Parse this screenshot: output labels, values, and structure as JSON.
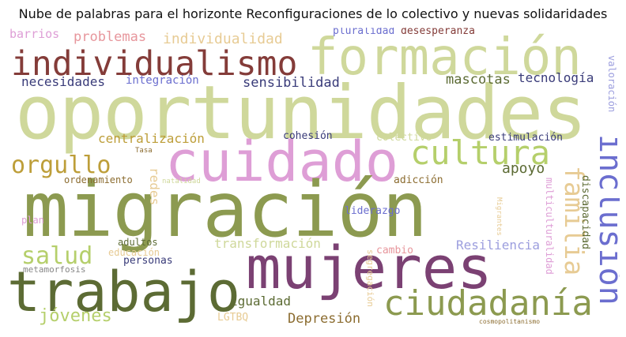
{
  "title": "Nube de palabras para el horizonte Reconfiguraciones de lo colectivo y nuevas solidaridades",
  "words": {
    "oportunidades": "oportunidades",
    "migracion": "migración",
    "formacion": "formación",
    "cuidado": "cuidado",
    "mujeres": "mujeres",
    "trabajo": "trabajo",
    "individualismo": "individualismo",
    "ciudadania": "ciudadanía",
    "cultura": "cultura",
    "inclusion": "inclusión",
    "familia": "familia",
    "orgullo": "orgullo",
    "salud": "salud",
    "jovenes": "jóvenes",
    "problemas": "problemas",
    "individualidad": "individualidad",
    "barrios": "barrios",
    "pluralidad": "pluralidad",
    "desesperanza": "desesperanza",
    "necesidades": "necesidades",
    "integracion": "integración",
    "sensibilidad": "sensibilidad",
    "mascotas": "mascotas",
    "tecnologia": "tecnología",
    "valoracion": "valoración",
    "centralizacion": "centralización",
    "cohesion": "cohesión",
    "colectivo": "colectivo",
    "estimulacion": "estimulación",
    "apoyo": "apoyo",
    "tasa": "Tasa",
    "redes": "redes",
    "ordenamiento": "ordenamiento",
    "natalidad": "natalidad",
    "adiccion": "adicción",
    "discapacidad": "discapacidad",
    "multiculturalidad": "multiculturalidad",
    "liderazgo": "liderazgo",
    "plan": "plan",
    "migrantes": "Migrantes",
    "transformacion": "transformación",
    "resiliencia": "Resiliencia",
    "adultos": "adultos",
    "educacion": "educación",
    "personas": "personas",
    "cambio": "cambio",
    "segregacion": "segregación",
    "metamorfosis": "metamorfosis",
    "igualdad": "igualdad",
    "lgtbq": "LGTBQ",
    "depresion": "Depresión",
    "cosmopolitanismo": "cosmopolitanismo"
  },
  "colors": {
    "olive": "#8c9a50",
    "dark_olive": "#5c6b34",
    "pale_olive": "#cfd89b",
    "light_olive": "#b5cf6b",
    "maroon": "#843c39",
    "pink": "#de9ed6",
    "plum": "#7b4173",
    "indigo": "#393b79",
    "blue": "#6b6ecf",
    "lavender": "#9c9ede",
    "rose": "#e7969c",
    "mustard": "#bd9e39",
    "brown": "#8c6d31",
    "sand": "#e7cb94",
    "grey": "#888888"
  }
}
